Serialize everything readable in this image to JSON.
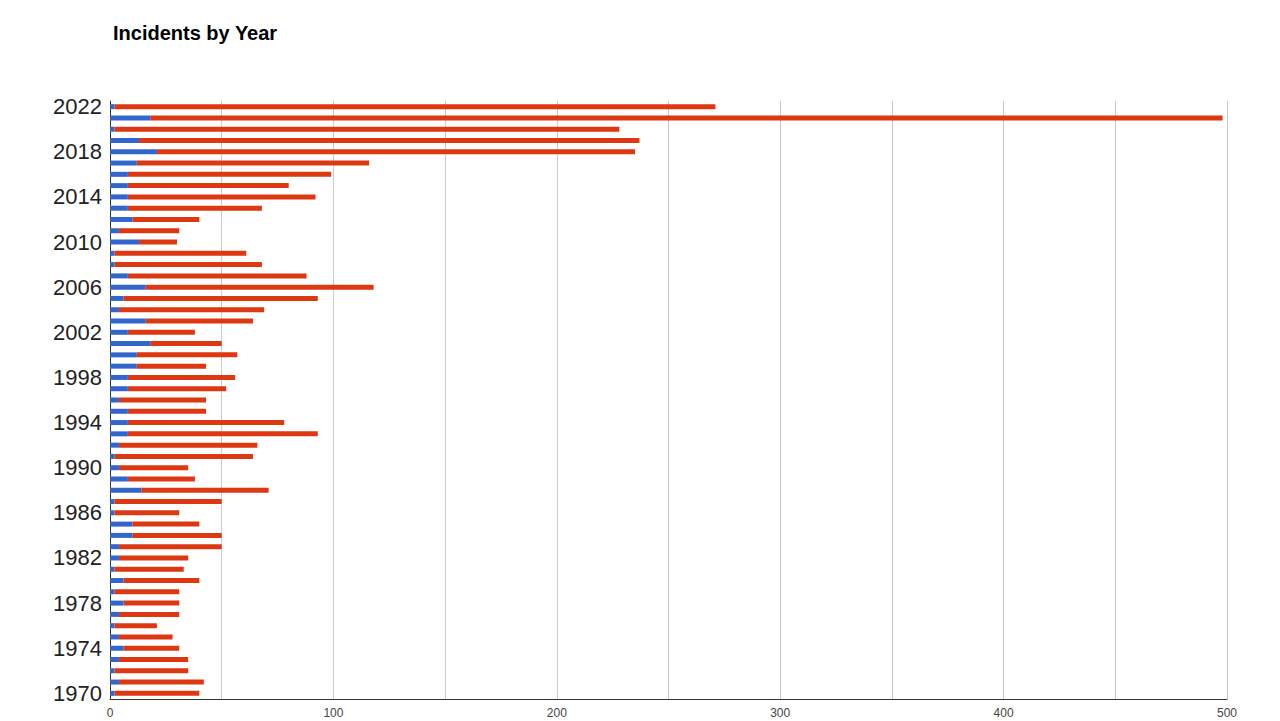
{
  "chart_data": {
    "type": "bar",
    "title": "Incidents by Year",
    "orientation": "horizontal",
    "stacked": true,
    "grid": true,
    "categories": [
      "1970",
      null,
      null,
      null,
      "1974",
      null,
      null,
      null,
      "1978",
      null,
      null,
      null,
      "1982",
      null,
      null,
      null,
      "1986",
      null,
      null,
      null,
      "1990",
      null,
      null,
      null,
      "1994",
      null,
      null,
      null,
      "1998",
      null,
      null,
      null,
      "2002",
      null,
      null,
      null,
      "2006",
      null,
      null,
      null,
      "2010",
      null,
      null,
      null,
      "2014",
      null,
      null,
      null,
      "2018",
      null,
      null,
      null,
      "2022"
    ],
    "series": [
      {
        "color": "#3366cc",
        "values": [
          2,
          4,
          2,
          4,
          6,
          4,
          2,
          4,
          6,
          2,
          6,
          2,
          4,
          4,
          10,
          10,
          2,
          2,
          14,
          8,
          4,
          2,
          4,
          8,
          8,
          8,
          4,
          8,
          8,
          12,
          12,
          18,
          8,
          16,
          4,
          6,
          16,
          8,
          2,
          2,
          13,
          4,
          10,
          8,
          8,
          8,
          8,
          12,
          21,
          13,
          2,
          18,
          2
        ]
      },
      {
        "color": "#dc3912",
        "values": [
          38,
          38,
          33,
          31,
          25,
          24,
          19,
          27,
          25,
          29,
          34,
          31,
          31,
          46,
          40,
          30,
          29,
          48,
          57,
          30,
          31,
          62,
          62,
          85,
          70,
          35,
          39,
          44,
          48,
          31,
          45,
          32,
          30,
          48,
          65,
          87,
          102,
          80,
          66,
          59,
          17,
          27,
          30,
          60,
          84,
          72,
          91,
          104,
          214,
          224,
          226,
          480,
          269
        ]
      }
    ],
    "xlim": [
      0,
      500
    ],
    "xticks": [
      0,
      100,
      200,
      300,
      400,
      500
    ]
  }
}
